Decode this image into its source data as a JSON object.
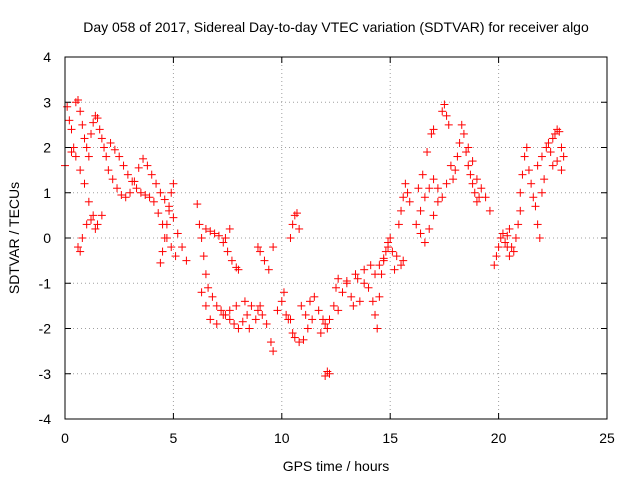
{
  "chart_data": {
    "type": "scatter",
    "title": "Day 058 of 2017, Sidereal Day-to-day VTEC variation (SDTVAR) for receiver algo",
    "xlabel": "GPS time / hours",
    "ylabel": "SDTVAR / TECUs",
    "xlim": [
      0,
      25
    ],
    "ylim": [
      -4,
      4
    ],
    "x_ticks": [
      0,
      5,
      10,
      15,
      20,
      25
    ],
    "y_ticks": [
      -4,
      -3,
      -2,
      -1,
      0,
      1,
      2,
      3,
      4
    ],
    "x_tick_labels": [
      "0",
      "5",
      "10",
      "15",
      "20",
      "25"
    ],
    "y_tick_labels": [
      "-4",
      "-3",
      "-2",
      "-1",
      "0",
      "1",
      "2",
      "3",
      "4"
    ],
    "grid": true,
    "marker": "+",
    "series": [
      {
        "name": "SDTVAR",
        "color": "#ff0000",
        "points": [
          [
            0.0,
            1.6
          ],
          [
            0.1,
            2.9
          ],
          [
            0.2,
            2.6
          ],
          [
            0.3,
            2.4
          ],
          [
            0.4,
            2.0
          ],
          [
            0.5,
            3.0
          ],
          [
            0.6,
            3.05
          ],
          [
            0.7,
            2.8
          ],
          [
            0.8,
            2.5
          ],
          [
            0.9,
            2.2
          ],
          [
            1.0,
            2.0
          ],
          [
            1.1,
            1.8
          ],
          [
            1.2,
            2.3
          ],
          [
            1.3,
            2.55
          ],
          [
            1.4,
            2.7
          ],
          [
            1.5,
            2.65
          ],
          [
            1.6,
            2.4
          ],
          [
            1.7,
            2.2
          ],
          [
            1.8,
            2.0
          ],
          [
            1.9,
            1.8
          ],
          [
            2.0,
            1.5
          ],
          [
            2.2,
            1.3
          ],
          [
            2.4,
            1.1
          ],
          [
            2.6,
            0.95
          ],
          [
            2.8,
            0.9
          ],
          [
            3.0,
            1.0
          ],
          [
            3.2,
            1.25
          ],
          [
            3.4,
            1.55
          ],
          [
            3.6,
            1.75
          ],
          [
            3.8,
            1.6
          ],
          [
            4.0,
            1.4
          ],
          [
            4.2,
            1.2
          ],
          [
            4.4,
            1.0
          ],
          [
            4.6,
            0.85
          ],
          [
            4.8,
            0.7
          ],
          [
            5.0,
            0.45
          ],
          [
            5.2,
            0.1
          ],
          [
            5.4,
            -0.2
          ],
          [
            5.6,
            -0.5
          ],
          [
            0.3,
            1.9
          ],
          [
            0.5,
            1.8
          ],
          [
            0.7,
            1.5
          ],
          [
            0.9,
            1.2
          ],
          [
            1.1,
            0.8
          ],
          [
            1.3,
            0.5
          ],
          [
            1.5,
            0.3
          ],
          [
            1.7,
            0.5
          ],
          [
            0.6,
            -0.2
          ],
          [
            0.7,
            -0.3
          ],
          [
            0.8,
            0.0
          ],
          [
            1.0,
            0.3
          ],
          [
            1.2,
            0.4
          ],
          [
            1.4,
            0.2
          ],
          [
            2.1,
            2.1
          ],
          [
            2.3,
            1.95
          ],
          [
            2.5,
            1.8
          ],
          [
            2.7,
            1.6
          ],
          [
            2.9,
            1.4
          ],
          [
            3.1,
            1.25
          ],
          [
            3.3,
            1.1
          ],
          [
            3.5,
            1.0
          ],
          [
            3.7,
            0.95
          ],
          [
            3.9,
            0.9
          ],
          [
            4.1,
            0.8
          ],
          [
            4.3,
            0.55
          ],
          [
            4.5,
            0.3
          ],
          [
            4.7,
            0.0
          ],
          [
            4.9,
            -0.2
          ],
          [
            5.1,
            -0.4
          ],
          [
            4.4,
            -0.55
          ],
          [
            4.5,
            -0.3
          ],
          [
            4.6,
            0.0
          ],
          [
            4.7,
            0.3
          ],
          [
            4.8,
            0.6
          ],
          [
            4.9,
            1.0
          ],
          [
            5.0,
            1.2
          ],
          [
            6.1,
            0.75
          ],
          [
            6.2,
            0.3
          ],
          [
            6.3,
            0.0
          ],
          [
            6.4,
            -0.4
          ],
          [
            6.5,
            -0.8
          ],
          [
            6.6,
            -1.1
          ],
          [
            6.8,
            -1.3
          ],
          [
            7.0,
            -1.5
          ],
          [
            7.2,
            -1.6
          ],
          [
            7.4,
            -1.7
          ],
          [
            7.6,
            -1.8
          ],
          [
            7.8,
            -1.9
          ],
          [
            8.0,
            -2.0
          ],
          [
            8.2,
            -1.85
          ],
          [
            8.4,
            -1.7
          ],
          [
            6.5,
            0.2
          ],
          [
            6.7,
            0.15
          ],
          [
            6.9,
            0.1
          ],
          [
            7.1,
            0.05
          ],
          [
            7.3,
            -0.1
          ],
          [
            7.5,
            -0.3
          ],
          [
            7.7,
            -0.5
          ],
          [
            7.9,
            -0.65
          ],
          [
            8.0,
            -0.7
          ],
          [
            7.6,
            0.2
          ],
          [
            7.4,
            0.0
          ],
          [
            6.3,
            -1.2
          ],
          [
            6.5,
            -1.5
          ],
          [
            6.7,
            -1.8
          ],
          [
            7.0,
            -1.9
          ],
          [
            7.3,
            -1.7
          ],
          [
            7.6,
            -1.6
          ],
          [
            7.9,
            -1.5
          ],
          [
            8.3,
            -1.4
          ],
          [
            8.6,
            -1.5
          ],
          [
            8.9,
            -1.6
          ],
          [
            9.1,
            -1.7
          ],
          [
            9.3,
            -1.9
          ],
          [
            9.5,
            -2.3
          ],
          [
            9.6,
            -2.5
          ],
          [
            8.5,
            -2.0
          ],
          [
            8.8,
            -1.8
          ],
          [
            9.0,
            -1.5
          ],
          [
            8.9,
            -0.2
          ],
          [
            9.0,
            -0.3
          ],
          [
            9.2,
            -0.5
          ],
          [
            9.4,
            -0.7
          ],
          [
            9.6,
            -0.2
          ],
          [
            9.8,
            -1.6
          ],
          [
            10.0,
            -1.4
          ],
          [
            10.1,
            -1.2
          ],
          [
            10.2,
            -1.7
          ],
          [
            10.3,
            -1.8
          ],
          [
            10.4,
            0.0
          ],
          [
            10.5,
            0.3
          ],
          [
            10.6,
            0.5
          ],
          [
            10.7,
            0.55
          ],
          [
            10.8,
            0.2
          ],
          [
            10.4,
            -1.8
          ],
          [
            10.5,
            -2.1
          ],
          [
            10.6,
            -2.2
          ],
          [
            10.8,
            -2.3
          ],
          [
            11.0,
            -2.25
          ],
          [
            11.2,
            -2.0
          ],
          [
            11.4,
            -1.8
          ],
          [
            10.9,
            -1.5
          ],
          [
            11.1,
            -1.7
          ],
          [
            11.3,
            -1.4
          ],
          [
            11.5,
            -1.3
          ],
          [
            11.7,
            -1.6
          ],
          [
            11.9,
            -1.8
          ],
          [
            12.1,
            -2.0
          ],
          [
            12.0,
            -3.05
          ],
          [
            12.1,
            -2.95
          ],
          [
            12.2,
            -3.0
          ],
          [
            11.8,
            -2.1
          ],
          [
            12.0,
            -1.9
          ],
          [
            12.2,
            -1.8
          ],
          [
            12.4,
            -1.5
          ],
          [
            12.5,
            -1.1
          ],
          [
            12.6,
            -1.6
          ],
          [
            12.8,
            -1.2
          ],
          [
            13.0,
            -1.0
          ],
          [
            13.2,
            -1.3
          ],
          [
            13.3,
            -1.5
          ],
          [
            13.5,
            -0.9
          ],
          [
            13.6,
            -1.4
          ],
          [
            13.8,
            -1.0
          ],
          [
            14.0,
            -1.1
          ],
          [
            12.6,
            -0.9
          ],
          [
            13.0,
            -0.95
          ],
          [
            13.4,
            -0.8
          ],
          [
            13.8,
            -0.7
          ],
          [
            14.1,
            -0.6
          ],
          [
            14.2,
            -1.4
          ],
          [
            14.3,
            -1.7
          ],
          [
            14.4,
            -2.0
          ],
          [
            14.5,
            -1.3
          ],
          [
            14.6,
            -0.8
          ],
          [
            14.7,
            -0.5
          ],
          [
            14.8,
            -0.3
          ],
          [
            14.9,
            -0.1
          ],
          [
            15.0,
            0.0
          ],
          [
            15.1,
            -0.3
          ],
          [
            15.2,
            -0.7
          ],
          [
            14.3,
            -0.8
          ],
          [
            14.5,
            -0.6
          ],
          [
            14.7,
            -0.45
          ],
          [
            14.9,
            -0.2
          ],
          [
            15.3,
            -0.4
          ],
          [
            15.5,
            -0.6
          ],
          [
            15.6,
            -0.5
          ],
          [
            15.4,
            0.3
          ],
          [
            15.5,
            0.6
          ],
          [
            15.6,
            0.9
          ],
          [
            15.7,
            1.2
          ],
          [
            15.8,
            1.0
          ],
          [
            15.9,
            0.8
          ],
          [
            16.2,
            0.3
          ],
          [
            16.4,
            0.1
          ],
          [
            16.6,
            -0.1
          ],
          [
            16.8,
            0.2
          ],
          [
            17.0,
            0.5
          ],
          [
            17.2,
            0.8
          ],
          [
            16.3,
            1.1
          ],
          [
            16.5,
            1.4
          ],
          [
            16.7,
            1.9
          ],
          [
            16.9,
            2.3
          ],
          [
            17.0,
            2.4
          ],
          [
            16.4,
            0.6
          ],
          [
            16.6,
            0.9
          ],
          [
            16.8,
            1.1
          ],
          [
            17.0,
            1.3
          ],
          [
            17.2,
            1.1
          ],
          [
            17.4,
            0.9
          ],
          [
            17.6,
            1.2
          ],
          [
            17.4,
            2.8
          ],
          [
            17.5,
            2.95
          ],
          [
            17.6,
            2.7
          ],
          [
            17.7,
            2.5
          ],
          [
            17.8,
            1.6
          ],
          [
            17.9,
            1.3
          ],
          [
            18.0,
            1.5
          ],
          [
            18.1,
            1.8
          ],
          [
            18.2,
            2.1
          ],
          [
            18.3,
            2.5
          ],
          [
            18.4,
            2.3
          ],
          [
            18.5,
            1.9
          ],
          [
            18.6,
            1.6
          ],
          [
            18.7,
            1.4
          ],
          [
            18.8,
            1.2
          ],
          [
            18.9,
            1.0
          ],
          [
            19.0,
            0.8
          ],
          [
            19.1,
            0.9
          ],
          [
            18.6,
            2.0
          ],
          [
            18.8,
            1.7
          ],
          [
            19.0,
            1.3
          ],
          [
            19.2,
            1.1
          ],
          [
            19.4,
            0.9
          ],
          [
            19.6,
            0.6
          ],
          [
            19.8,
            -0.6
          ],
          [
            19.9,
            -0.4
          ],
          [
            20.0,
            -0.2
          ],
          [
            20.1,
            0.0
          ],
          [
            20.2,
            0.1
          ],
          [
            20.3,
            -0.1
          ],
          [
            20.4,
            0.05
          ],
          [
            20.5,
            0.2
          ],
          [
            20.6,
            -0.2
          ],
          [
            20.7,
            -0.3
          ],
          [
            20.8,
            0.0
          ],
          [
            20.9,
            0.3
          ],
          [
            21.0,
            0.6
          ],
          [
            20.5,
            -0.4
          ],
          [
            20.4,
            -0.2
          ],
          [
            21.0,
            1.0
          ],
          [
            21.1,
            1.4
          ],
          [
            21.2,
            1.8
          ],
          [
            21.3,
            2.0
          ],
          [
            21.4,
            1.5
          ],
          [
            21.5,
            1.2
          ],
          [
            21.6,
            0.9
          ],
          [
            21.7,
            0.7
          ],
          [
            21.8,
            0.3
          ],
          [
            21.9,
            0.0
          ],
          [
            22.0,
            1.0
          ],
          [
            22.1,
            1.3
          ],
          [
            21.8,
            1.6
          ],
          [
            22.0,
            1.8
          ],
          [
            22.2,
            2.0
          ],
          [
            22.3,
            2.1
          ],
          [
            22.4,
            1.9
          ],
          [
            22.5,
            2.2
          ],
          [
            22.6,
            2.3
          ],
          [
            22.7,
            2.4
          ],
          [
            22.8,
            2.35
          ],
          [
            22.9,
            2.0
          ],
          [
            23.0,
            1.8
          ],
          [
            22.9,
            1.5
          ],
          [
            22.7,
            1.7
          ],
          [
            22.5,
            1.6
          ]
        ]
      }
    ]
  }
}
